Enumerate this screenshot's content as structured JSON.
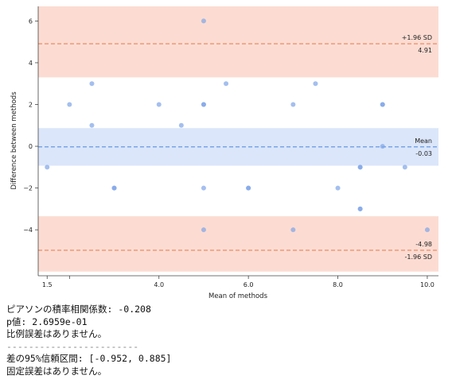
{
  "chart_data": {
    "type": "scatter",
    "title": "",
    "xlabel": "Mean of methods",
    "ylabel": "Difference between methods",
    "xlim": [
      1.3,
      10.25
    ],
    "ylim": [
      -6.2,
      6.7
    ],
    "x_ticks": [
      1.5,
      2.0,
      4.0,
      6.0,
      8.0,
      10.0
    ],
    "x_tick_labels": [
      "1.5",
      "",
      "4.0",
      "6.0",
      "8.0",
      "10.0"
    ],
    "y_ticks": [
      6,
      4,
      2,
      0,
      -2,
      -4
    ],
    "y_tick_labels": [
      "6",
      "4",
      "2",
      "0",
      "−2",
      "−4"
    ],
    "grid": false,
    "point_color": "#7da4e8",
    "points": [
      {
        "x": 1.5,
        "y": -1
      },
      {
        "x": 2.0,
        "y": 2
      },
      {
        "x": 2.5,
        "y": 3
      },
      {
        "x": 2.5,
        "y": 1
      },
      {
        "x": 3.0,
        "y": -2
      },
      {
        "x": 3.0,
        "y": -2
      },
      {
        "x": 4.0,
        "y": 2
      },
      {
        "x": 4.5,
        "y": 1
      },
      {
        "x": 5.0,
        "y": 6
      },
      {
        "x": 5.0,
        "y": 2
      },
      {
        "x": 5.0,
        "y": 2
      },
      {
        "x": 5.0,
        "y": -2
      },
      {
        "x": 5.0,
        "y": -4
      },
      {
        "x": 5.5,
        "y": 3
      },
      {
        "x": 6.0,
        "y": -2
      },
      {
        "x": 6.0,
        "y": -2
      },
      {
        "x": 7.0,
        "y": 2
      },
      {
        "x": 7.0,
        "y": -4
      },
      {
        "x": 7.5,
        "y": 3
      },
      {
        "x": 8.0,
        "y": -2
      },
      {
        "x": 8.5,
        "y": -1
      },
      {
        "x": 8.5,
        "y": -1
      },
      {
        "x": 8.5,
        "y": -3
      },
      {
        "x": 8.5,
        "y": -3
      },
      {
        "x": 9.0,
        "y": 2
      },
      {
        "x": 9.0,
        "y": 2
      },
      {
        "x": 9.0,
        "y": 0
      },
      {
        "x": 9.5,
        "y": -1
      },
      {
        "x": 10.0,
        "y": -4
      }
    ],
    "mean": {
      "value": -0.03,
      "label": "Mean",
      "value_label": "-0.03",
      "color": "#5a8ee0",
      "band": [
        -0.93,
        0.87
      ],
      "band_color": "#dbe6fa"
    },
    "upper_loa": {
      "value": 4.91,
      "label": "+1.96 SD",
      "value_label": "4.91",
      "color": "#e8835a",
      "band": [
        3.3,
        6.7
      ],
      "band_color": "#fcdcd2"
    },
    "lower_loa": {
      "value": -4.98,
      "label": "-1.96 SD",
      "value_label": "-4.98",
      "color": "#e8835a",
      "band": [
        -6.0,
        -3.35
      ],
      "band_color": "#fcdcd2"
    }
  },
  "stats": {
    "pearson": "ピアソンの積率相関係数: -0.208",
    "p_value": "p値: 2.6959e-01",
    "proportional": "比例誤差はありません。",
    "separator": "------------------------",
    "ci": "差の95%信頼区間: [-0.952, 0.885]",
    "fixed": "固定誤差はありません。"
  }
}
